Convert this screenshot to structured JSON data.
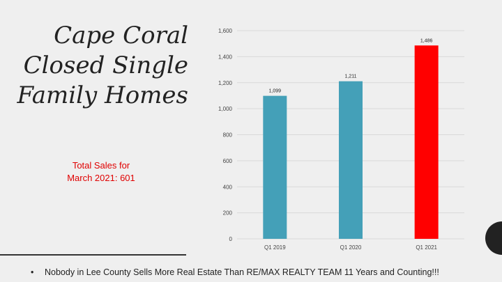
{
  "slide": {
    "title_lines": [
      "Cape Coral",
      "Closed Single",
      "Family Homes"
    ],
    "sales_note_lines": [
      "Total Sales for",
      "March 2021: 601"
    ],
    "footer_bullet": "•",
    "footer_text": "Nobody in Lee County Sells More Real Estate Than RE/MAX REALTY  TEAM  11 Years and Counting!!!"
  },
  "colors": {
    "bar_default": "#44a0b8",
    "bar_highlight": "#ff0000",
    "title": "#222222",
    "sales_note": "#e00000",
    "gridline": "#d9d9d9"
  },
  "chart_data": {
    "type": "bar",
    "categories": [
      "Q1 2019",
      "Q1 2020",
      "Q1 2021"
    ],
    "values": [
      1099,
      1211,
      1486
    ],
    "value_labels": [
      "1,099",
      "1,211",
      "1,486"
    ],
    "bar_colors": [
      "#44a0b8",
      "#44a0b8",
      "#ff0000"
    ],
    "yticks": [
      0,
      200,
      400,
      600,
      800,
      1000,
      1200,
      1400,
      1600
    ],
    "ytick_labels": [
      "0",
      "200",
      "400",
      "600",
      "800",
      "1,000",
      "1,200",
      "1,400",
      "1,600"
    ],
    "ylim": [
      0,
      1600
    ],
    "grid": true,
    "legend": "none",
    "title": "",
    "xlabel": "",
    "ylabel": ""
  }
}
